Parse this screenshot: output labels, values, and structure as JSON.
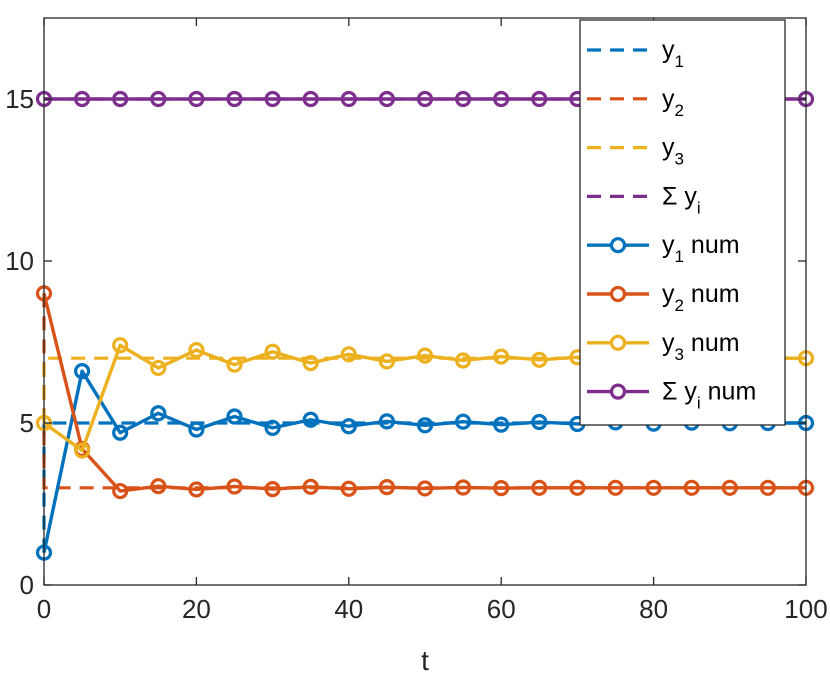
{
  "chart_data": {
    "type": "line",
    "title": "",
    "xlabel": "t",
    "ylabel": "",
    "xlim": [
      0,
      100
    ],
    "ylim": [
      0,
      17.5
    ],
    "xticks": [
      0,
      20,
      40,
      60,
      80,
      100
    ],
    "yticks": [
      0,
      5,
      10,
      15
    ],
    "grid": false,
    "legend_position": "top-right",
    "x_num": [
      0,
      5,
      10,
      15,
      20,
      25,
      30,
      35,
      40,
      45,
      50,
      55,
      60,
      65,
      70,
      75,
      80,
      85,
      90,
      95,
      100
    ],
    "series": [
      {
        "name": "y",
        "sub": "1",
        "suffix": "",
        "style": "dashed",
        "color": "#0072BD",
        "steps": [
          [
            0,
            1
          ],
          [
            0,
            5
          ],
          [
            100,
            5
          ]
        ]
      },
      {
        "name": "y",
        "sub": "2",
        "suffix": "",
        "style": "dashed",
        "color": "#D95319",
        "steps": [
          [
            0,
            9
          ],
          [
            0,
            3
          ],
          [
            100,
            3
          ]
        ]
      },
      {
        "name": "y",
        "sub": "3",
        "suffix": "",
        "style": "dashed",
        "color": "#EDB120",
        "steps": [
          [
            0,
            5
          ],
          [
            0,
            7
          ],
          [
            100,
            7
          ]
        ]
      },
      {
        "name": "Σ y",
        "sub": "i",
        "suffix": "",
        "style": "dashed",
        "color": "#7E2F8E",
        "steps": [
          [
            0,
            15
          ],
          [
            100,
            15
          ]
        ]
      },
      {
        "name": "y",
        "sub": "1",
        "suffix": " num",
        "style": "solid-marker",
        "color": "#0072BD",
        "values": [
          1,
          6.6,
          4.7,
          5.3,
          4.8,
          5.2,
          4.85,
          5.1,
          4.9,
          5.05,
          4.93,
          5.04,
          4.95,
          5.03,
          4.97,
          5.02,
          4.98,
          5.01,
          4.99,
          5.0,
          5.0
        ]
      },
      {
        "name": "y",
        "sub": "2",
        "suffix": " num",
        "style": "solid-marker",
        "color": "#D95319",
        "values": [
          9,
          4.2,
          2.9,
          3.05,
          2.95,
          3.04,
          2.96,
          3.03,
          2.97,
          3.02,
          2.98,
          3.01,
          2.99,
          3.0,
          3.0,
          3.0,
          3.0,
          3.0,
          3.0,
          3.0,
          3.0
        ]
      },
      {
        "name": "y",
        "sub": "3",
        "suffix": " num",
        "style": "solid-marker",
        "color": "#EDB120",
        "values": [
          5,
          4.15,
          7.4,
          6.7,
          7.25,
          6.8,
          7.2,
          6.85,
          7.12,
          6.9,
          7.08,
          6.93,
          7.05,
          6.95,
          7.03,
          6.98,
          7.02,
          6.99,
          7.01,
          7.0,
          7.0
        ]
      },
      {
        "name": "Σ y",
        "sub": "i",
        "suffix": " num",
        "style": "solid-marker",
        "color": "#7E2F8E",
        "values": [
          15,
          15,
          15,
          15,
          15,
          15,
          15,
          15,
          15,
          15,
          15,
          15,
          15,
          15,
          15,
          15,
          15,
          15,
          15,
          15,
          15
        ]
      }
    ]
  }
}
